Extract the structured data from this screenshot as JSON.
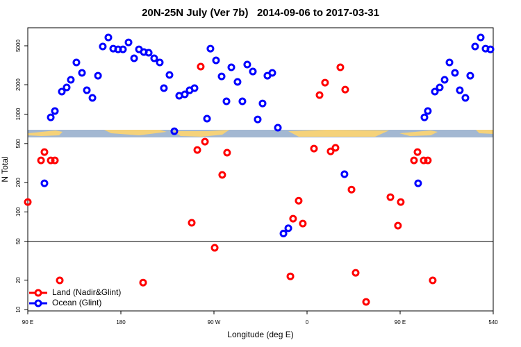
{
  "chart_data": {
    "type": "scatter",
    "title": "20N-25N July (Ver 7b)   2014-09-06 to 2017-03-31",
    "x_label": "Longitude (deg E)",
    "y_label": "N Total",
    "xlim": [
      90,
      540
    ],
    "xticks": [
      {
        "value": 90,
        "label": "90 E"
      },
      180,
      {
        "value": 270,
        "label": "90 W"
      },
      {
        "value": 360,
        "label": "0"
      },
      {
        "value": 450,
        "label": "90 E"
      },
      540
    ],
    "ylim": [
      9.7,
      7650
    ],
    "log_y": true,
    "yticks": [
      10,
      20,
      50,
      100,
      200,
      500,
      1000,
      2000,
      5000
    ],
    "hline": 50,
    "legend": "bottom-left",
    "series": [
      {
        "name": "Land (Nadir&Glint)",
        "color": "#ff0000",
        "x": [
          90,
          102.8,
          106.1,
          112.2,
          116.2,
          120.9,
          201.5,
          248.5,
          253.9,
          257.2,
          261.3,
          270.7,
          278.0,
          282.7,
          343.9,
          346.5,
          351.9,
          355.9,
          366.7,
          372.1,
          377.4,
          382.8,
          387.5,
          392.2,
          396.9,
          403.0,
          407.0,
          417.1,
          440.6,
          447.9,
          450.6,
          463.4,
          466.8,
          472.8,
          476.8,
          481.5
        ],
        "values": [
          126,
          336,
          409,
          336,
          336,
          19.9,
          18.9,
          77.3,
          430,
          3062,
          523,
          42.9,
          239,
          403,
          21.9,
          85.2,
          130,
          76,
          444,
          1566,
          2100,
          416,
          452,
          3013,
          1783,
          169,
          23.8,
          12,
          141.5,
          72.3,
          126,
          336,
          409,
          336,
          336,
          19.9
        ]
      },
      {
        "name": "Ocean (Glint)",
        "color": "#0000ff",
        "x": [
          106.1,
          112.2,
          116.2,
          122.9,
          127.6,
          131.6,
          137.0,
          142.4,
          147.1,
          152.5,
          157.9,
          162.5,
          167.9,
          172.6,
          177.3,
          182.0,
          187.4,
          192.8,
          197.5,
          202.2,
          206.9,
          212.2,
          217.6,
          221.6,
          227.0,
          231.7,
          236.4,
          241.8,
          246.5,
          251.2,
          263.3,
          266.6,
          272.0,
          277.4,
          282.1,
          286.8,
          292.8,
          297.5,
          302.2,
          307.6,
          312.3,
          317.0,
          321.7,
          326.4,
          331.8,
          337.2,
          341.9,
          396.2,
          467.4,
          473.5,
          476.8,
          483.6,
          488.3,
          493.0,
          497.7,
          503.0,
          507.7,
          513.1,
          517.8,
          522.5,
          527.9,
          532.6,
          537.3
        ],
        "values": [
          196,
          927,
          1075,
          1700,
          1875,
          2244,
          3377,
          2642,
          1755,
          1466,
          2473,
          4917,
          6083,
          4677,
          4603,
          4603,
          5420,
          3724,
          4603,
          4315,
          4246,
          3724,
          3377,
          1845,
          2518,
          668,
          1541,
          1592,
          1755,
          1845,
          898,
          4677,
          3546,
          2432,
          1352,
          3013,
          2136,
          1352,
          3214,
          2729,
          883,
          1286,
          2473,
          2642,
          726,
          60,
          68,
          243,
          196,
          927,
          1075,
          1700,
          1875,
          2244,
          3377,
          2642,
          1755,
          1466,
          2473,
          4917,
          6083,
          4677,
          4603
        ]
      }
    ]
  }
}
